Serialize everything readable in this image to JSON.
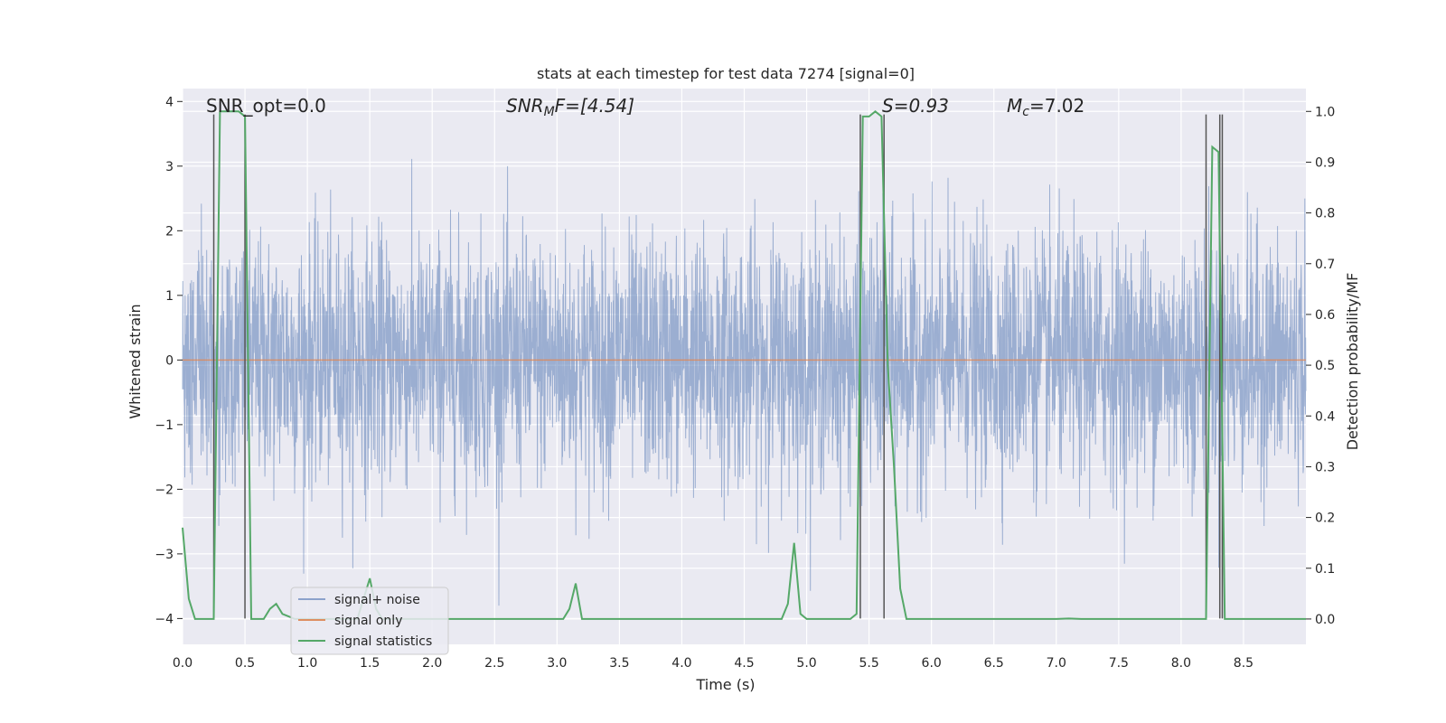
{
  "chart_data": {
    "type": "line",
    "title": "stats at each timestep for test data 7274 [signal=0]",
    "xlabel": "Time (s)",
    "ylabel_left": "Whitened strain",
    "ylabel_right": "Detection probability/MF",
    "xlim": [
      0.0,
      9.0
    ],
    "ylim_left": [
      -4.4,
      4.2
    ],
    "ylim_right": [
      -0.05,
      1.045
    ],
    "x_ticks": [
      "0.0",
      "0.5",
      "1.0",
      "1.5",
      "2.0",
      "2.5",
      "3.0",
      "3.5",
      "4.0",
      "4.5",
      "5.0",
      "5.5",
      "6.0",
      "6.5",
      "7.0",
      "7.5",
      "8.0",
      "8.5"
    ],
    "y_ticks_left": [
      "4",
      "3",
      "2",
      "1",
      "0",
      "−1",
      "−2",
      "−3",
      "−4"
    ],
    "y_ticks_right": [
      "1.0",
      "0.9",
      "0.8",
      "0.7",
      "0.6",
      "0.5",
      "0.4",
      "0.3",
      "0.2",
      "0.1",
      "0.0"
    ],
    "grid": true,
    "legend_position": "lower-left",
    "colors": {
      "background": "#eaeaf2",
      "grid": "#ffffff",
      "noise": "#4c72b0",
      "signal": "#dd8452",
      "stats": "#55a868",
      "marker": "#555555"
    },
    "annotations": {
      "snr_opt": "SNR_opt=0.0",
      "snr_mf": "SNR",
      "snr_mf_sub": "M",
      "snr_mf_tail": "F=[4.54]",
      "s_value": "S=0.93",
      "mc_symbol": "M",
      "mc_sub": "c",
      "mc_tail": "=7.02"
    },
    "series": [
      {
        "name": "signal+ noise",
        "description": "whitened strain noise, approx. Gaussian around 0, peaks between -3.8 and 3.8",
        "range": [
          -3.8,
          3.8
        ]
      },
      {
        "name": "signal only",
        "constant": 0.0
      },
      {
        "name": "signal statistics",
        "x": [
          0.0,
          0.05,
          0.1,
          0.15,
          0.2,
          0.25,
          0.3,
          0.35,
          0.4,
          0.45,
          0.5,
          0.55,
          0.6,
          0.65,
          0.7,
          0.75,
          0.8,
          0.9,
          1.0,
          1.2,
          1.4,
          1.5,
          1.55,
          1.6,
          1.8,
          2.0,
          2.5,
          3.0,
          3.05,
          3.1,
          3.15,
          3.2,
          3.25,
          3.5,
          4.0,
          4.5,
          4.8,
          4.85,
          4.9,
          4.95,
          5.0,
          5.05,
          5.1,
          5.2,
          5.3,
          5.35,
          5.4,
          5.45,
          5.5,
          5.55,
          5.6,
          5.65,
          5.7,
          5.75,
          5.8,
          5.85,
          6.0,
          6.5,
          7.0,
          7.1,
          7.2,
          7.5,
          8.0,
          8.2,
          8.25,
          8.3,
          8.35,
          8.5,
          9.0
        ],
        "values": [
          0.18,
          0.04,
          0.0,
          0.0,
          0.0,
          0.0,
          1.0,
          1.0,
          1.0,
          1.0,
          0.99,
          0.0,
          0.0,
          0.0,
          0.02,
          0.03,
          0.01,
          0.0,
          0.0,
          0.0,
          0.0,
          0.08,
          0.02,
          0.0,
          0.0,
          0.0,
          0.0,
          0.0,
          0.0,
          0.02,
          0.07,
          0.0,
          0.0,
          0.0,
          0.0,
          0.0,
          0.0,
          0.03,
          0.15,
          0.01,
          0.0,
          0.0,
          0.0,
          0.0,
          0.0,
          0.0,
          0.01,
          0.99,
          0.99,
          1.0,
          0.99,
          0.5,
          0.3,
          0.06,
          0.0,
          0.0,
          0.0,
          0.0,
          0.0,
          0.001,
          0.0,
          0.0,
          0.0,
          0.0,
          0.93,
          0.92,
          0.0,
          0.0,
          0.0
        ]
      }
    ],
    "vertical_markers": [
      0.25,
      0.5,
      5.43,
      5.62,
      8.2,
      8.31,
      8.33
    ]
  }
}
